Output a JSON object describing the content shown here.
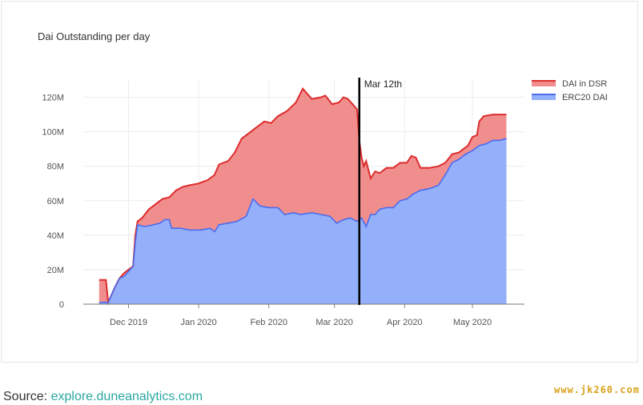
{
  "chart_data": {
    "type": "area",
    "title": "Dai Outstanding per day",
    "xlabel": "",
    "ylabel": "",
    "x_start": "2019-11-18",
    "x_end": "2020-05-16",
    "xlim": [
      "2019-11-11",
      "2020-05-24"
    ],
    "ylim": [
      0,
      130000000
    ],
    "yticks": [
      {
        "value": 0,
        "label": "0"
      },
      {
        "value": 20000000,
        "label": "20M"
      },
      {
        "value": 40000000,
        "label": "40M"
      },
      {
        "value": 60000000,
        "label": "60M"
      },
      {
        "value": 80000000,
        "label": "80M"
      },
      {
        "value": 100000000,
        "label": "100M"
      },
      {
        "value": 120000000,
        "label": "120M"
      }
    ],
    "xticks": [
      {
        "date": "2019-12-01",
        "label": "Dec 2019"
      },
      {
        "date": "2020-01-01",
        "label": "Jan 2020"
      },
      {
        "date": "2020-02-01",
        "label": "Feb 2020"
      },
      {
        "date": "2020-03-01",
        "label": "Mar 2020"
      },
      {
        "date": "2020-04-01",
        "label": "Apr 2020"
      },
      {
        "date": "2020-05-01",
        "label": "May 2020"
      }
    ],
    "grid": true,
    "stacked": true,
    "legend_position": "top-right",
    "series": [
      {
        "name": "DAI in DSR",
        "fill": "#f08e8e",
        "line": "#dd2c2c",
        "total_points": [
          [
            "2019-11-18",
            14.0
          ],
          [
            "2019-11-21",
            14.0
          ],
          [
            "2019-11-22",
            1.0
          ],
          [
            "2019-11-25",
            10.0
          ],
          [
            "2019-11-27",
            15.0
          ],
          [
            "2019-11-29",
            18.0
          ],
          [
            "2019-12-03",
            22.0
          ],
          [
            "2019-12-04",
            40.0
          ],
          [
            "2019-12-05",
            48.0
          ],
          [
            "2019-12-07",
            50.0
          ],
          [
            "2019-12-10",
            55.0
          ],
          [
            "2019-12-13",
            58.0
          ],
          [
            "2019-12-16",
            61.0
          ],
          [
            "2019-12-19",
            62.0
          ],
          [
            "2019-12-22",
            66.0
          ],
          [
            "2019-12-25",
            68.0
          ],
          [
            "2019-12-28",
            69.0
          ],
          [
            "2020-01-01",
            70.0
          ],
          [
            "2020-01-05",
            72.0
          ],
          [
            "2020-01-08",
            75.0
          ],
          [
            "2020-01-10",
            81.0
          ],
          [
            "2020-01-14",
            83.0
          ],
          [
            "2020-01-17",
            88.0
          ],
          [
            "2020-01-20",
            96.0
          ],
          [
            "2020-01-23",
            99.0
          ],
          [
            "2020-01-26",
            102.0
          ],
          [
            "2020-01-30",
            106.0
          ],
          [
            "2020-02-02",
            105.0
          ],
          [
            "2020-02-05",
            109.0
          ],
          [
            "2020-02-09",
            112.0
          ],
          [
            "2020-02-13",
            117.0
          ],
          [
            "2020-02-16",
            125.0
          ],
          [
            "2020-02-18",
            122.0
          ],
          [
            "2020-02-20",
            119.0
          ],
          [
            "2020-02-24",
            120.0
          ],
          [
            "2020-02-26",
            121.0
          ],
          [
            "2020-02-29",
            116.0
          ],
          [
            "2020-03-03",
            117.0
          ],
          [
            "2020-03-05",
            120.0
          ],
          [
            "2020-03-07",
            119.0
          ],
          [
            "2020-03-09",
            116.0
          ],
          [
            "2020-03-11",
            113.0
          ],
          [
            "2020-03-12",
            95.0
          ],
          [
            "2020-03-13",
            85.0
          ],
          [
            "2020-03-14",
            80.0
          ],
          [
            "2020-03-15",
            83.0
          ],
          [
            "2020-03-17",
            73.0
          ],
          [
            "2020-03-19",
            77.0
          ],
          [
            "2020-03-21",
            76.0
          ],
          [
            "2020-03-24",
            79.0
          ],
          [
            "2020-03-27",
            79.0
          ],
          [
            "2020-03-30",
            82.0
          ],
          [
            "2020-04-02",
            82.0
          ],
          [
            "2020-04-04",
            86.0
          ],
          [
            "2020-04-06",
            85.0
          ],
          [
            "2020-04-08",
            79.0
          ],
          [
            "2020-04-12",
            79.0
          ],
          [
            "2020-04-16",
            80.0
          ],
          [
            "2020-04-19",
            82.0
          ],
          [
            "2020-04-22",
            87.0
          ],
          [
            "2020-04-25",
            88.0
          ],
          [
            "2020-04-27",
            90.0
          ],
          [
            "2020-04-29",
            92.0
          ],
          [
            "2020-05-01",
            97.0
          ],
          [
            "2020-05-03",
            98.0
          ],
          [
            "2020-05-04",
            106.0
          ],
          [
            "2020-05-06",
            109.0
          ],
          [
            "2020-05-10",
            110.0
          ],
          [
            "2020-05-16",
            110.0
          ]
        ]
      },
      {
        "name": "ERC20 DAI",
        "fill": "#94b0fa",
        "line": "#4a6cf0",
        "points": [
          [
            "2019-11-18",
            1.0
          ],
          [
            "2019-11-22",
            1.0
          ],
          [
            "2019-11-25",
            10.0
          ],
          [
            "2019-11-27",
            15.0
          ],
          [
            "2019-11-29",
            16.0
          ],
          [
            "2019-12-01",
            19.0
          ],
          [
            "2019-12-03",
            22.0
          ],
          [
            "2019-12-04",
            36.0
          ],
          [
            "2019-12-05",
            46.0
          ],
          [
            "2019-12-08",
            45.0
          ],
          [
            "2019-12-12",
            46.0
          ],
          [
            "2019-12-15",
            47.0
          ],
          [
            "2019-12-17",
            49.0
          ],
          [
            "2019-12-19",
            49.0
          ],
          [
            "2019-12-20",
            44.0
          ],
          [
            "2019-12-24",
            44.0
          ],
          [
            "2019-12-28",
            43.0
          ],
          [
            "2020-01-02",
            43.0
          ],
          [
            "2020-01-06",
            44.0
          ],
          [
            "2020-01-08",
            42.0
          ],
          [
            "2020-01-10",
            46.0
          ],
          [
            "2020-01-14",
            47.0
          ],
          [
            "2020-01-18",
            48.0
          ],
          [
            "2020-01-22",
            51.0
          ],
          [
            "2020-01-25",
            61.0
          ],
          [
            "2020-01-28",
            57.0
          ],
          [
            "2020-02-01",
            56.0
          ],
          [
            "2020-02-05",
            56.0
          ],
          [
            "2020-02-08",
            52.0
          ],
          [
            "2020-02-12",
            53.0
          ],
          [
            "2020-02-15",
            52.0
          ],
          [
            "2020-02-20",
            53.0
          ],
          [
            "2020-02-24",
            52.0
          ],
          [
            "2020-02-28",
            51.0
          ],
          [
            "2020-03-02",
            47.0
          ],
          [
            "2020-03-05",
            49.0
          ],
          [
            "2020-03-08",
            50.0
          ],
          [
            "2020-03-11",
            48.0
          ],
          [
            "2020-03-13",
            50.0
          ],
          [
            "2020-03-15",
            45.0
          ],
          [
            "2020-03-17",
            52.0
          ],
          [
            "2020-03-19",
            52.0
          ],
          [
            "2020-03-21",
            55.0
          ],
          [
            "2020-03-24",
            56.0
          ],
          [
            "2020-03-27",
            56.0
          ],
          [
            "2020-03-30",
            60.0
          ],
          [
            "2020-04-02",
            61.0
          ],
          [
            "2020-04-05",
            64.0
          ],
          [
            "2020-04-08",
            66.0
          ],
          [
            "2020-04-12",
            67.0
          ],
          [
            "2020-04-16",
            69.0
          ],
          [
            "2020-04-19",
            75.0
          ],
          [
            "2020-04-22",
            82.0
          ],
          [
            "2020-04-25",
            84.0
          ],
          [
            "2020-04-28",
            87.0
          ],
          [
            "2020-05-01",
            89.0
          ],
          [
            "2020-05-04",
            92.0
          ],
          [
            "2020-05-07",
            93.0
          ],
          [
            "2020-05-10",
            95.0
          ],
          [
            "2020-05-13",
            95.0
          ],
          [
            "2020-05-16",
            96.0
          ]
        ]
      }
    ],
    "annotations": [
      {
        "label": "Mar 12th",
        "date": "2020-03-12",
        "type": "vertical-line",
        "color": "#000000"
      }
    ]
  },
  "source": {
    "prefix": "Source: ",
    "link": "explore.duneanalytics.com"
  },
  "watermark": "www.jk260.com"
}
